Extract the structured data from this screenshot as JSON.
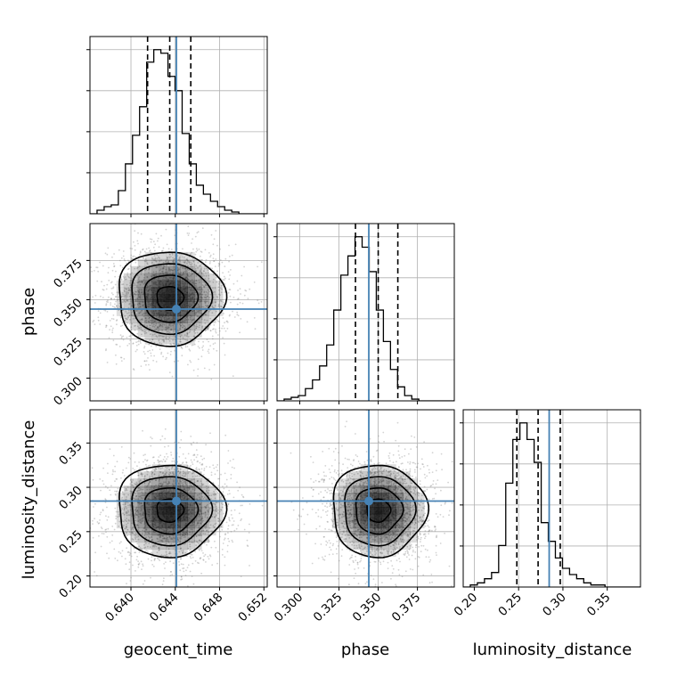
{
  "chart_data": {
    "type": "corner",
    "params": [
      "geocent_time",
      "phase",
      "luminosity_distance"
    ],
    "axis_labels": {
      "geocent_time": "geocent_time",
      "phase": "phase",
      "luminosity_distance": "luminosity_distance"
    },
    "ranges": {
      "geocent_time": [
        0.6363,
        0.6523
      ],
      "phase": [
        0.2855,
        0.3985
      ],
      "luminosity_distance": [
        0.1875,
        0.3875
      ]
    },
    "ticks": {
      "geocent_time": {
        "values": [
          0.64,
          0.644,
          0.648,
          0.652
        ],
        "labels": [
          "0.640",
          "0.644",
          "0.648",
          "0.652"
        ]
      },
      "phase": {
        "values": [
          0.3,
          0.325,
          0.35,
          0.375
        ],
        "labels": [
          "0.300",
          "0.325",
          "0.350",
          "0.375"
        ]
      },
      "luminosity_distance": {
        "values": [
          0.2,
          0.25,
          0.3,
          0.35
        ],
        "labels": [
          "0.20",
          "0.25",
          "0.30",
          "0.35"
        ]
      }
    },
    "truths": {
      "geocent_time": 0.6441,
      "phase": 0.344,
      "luminosity_distance": 0.2845
    },
    "truth_color": "#4682b4",
    "quantiles": {
      "geocent_time": [
        0.6415,
        0.6435,
        0.6454
      ],
      "phase": [
        0.3355,
        0.35,
        0.3625
      ],
      "luminosity_distance": [
        0.248,
        0.272,
        0.297
      ]
    },
    "histograms": {
      "geocent_time": {
        "edges_start": 0.6363,
        "bin_width": 0.00064,
        "counts": [
          0,
          2,
          4,
          5,
          13,
          28,
          44,
          60,
          85,
          92,
          90,
          77,
          69,
          45,
          28,
          16,
          11,
          7,
          4,
          2,
          1,
          0,
          0,
          0,
          0
        ]
      },
      "phase": {
        "edges_start": 0.2855,
        "bin_width": 0.00452,
        "counts": [
          0,
          1,
          2,
          3,
          7,
          12,
          20,
          32,
          52,
          72,
          83,
          94,
          88,
          74,
          52,
          34,
          18,
          8,
          3,
          1,
          0,
          0,
          0,
          0,
          0
        ]
      },
      "luminosity_distance": {
        "edges_start": 0.1875,
        "bin_width": 0.008,
        "counts": [
          0,
          1,
          2,
          4,
          7,
          20,
          50,
          71,
          79,
          71,
          60,
          31,
          22,
          14,
          9,
          6,
          4,
          2,
          1,
          1,
          0,
          0,
          0,
          0,
          0
        ]
      }
    },
    "scatter_2d": [
      {
        "x": "geocent_time",
        "y": "phase",
        "center": [
          0.6435,
          0.351
        ],
        "sd": [
          0.0024,
          0.015
        ],
        "rho": 0.0,
        "contour_levels": [
          0.118,
          0.393,
          0.675,
          0.865
        ]
      },
      {
        "x": "geocent_time",
        "y": "luminosity_distance",
        "center": [
          0.6435,
          0.274
        ],
        "sd": [
          0.0024,
          0.026
        ],
        "rho": 0.0,
        "contour_levels": [
          0.118,
          0.393,
          0.675,
          0.865
        ]
      },
      {
        "x": "phase",
        "y": "luminosity_distance",
        "center": [
          0.35,
          0.274
        ],
        "sd": [
          0.015,
          0.026
        ],
        "rho": 0.0,
        "contour_levels": [
          0.118,
          0.393,
          0.675,
          0.865
        ]
      }
    ],
    "grid": true,
    "colors": {
      "hist": "#000000",
      "scatter": "#808080",
      "grid": "#b0b0b0",
      "contour": "#000000"
    }
  }
}
